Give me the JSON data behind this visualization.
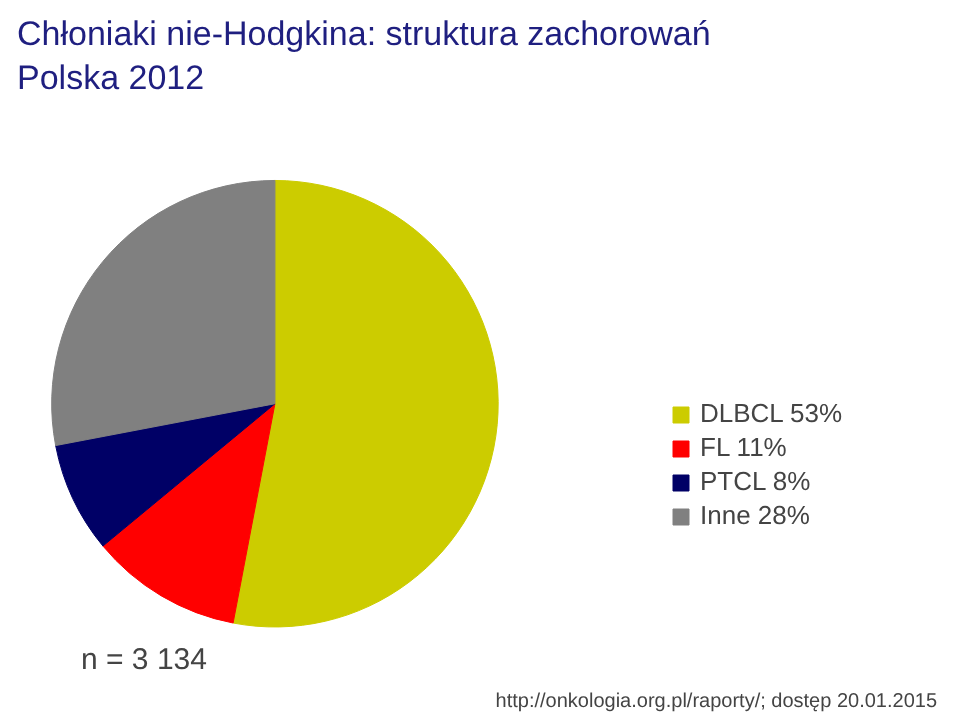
{
  "chart_data": {
    "type": "pie",
    "title": "Chłoniaki nie-Hodgkina: struktura zachorowań\nPolska 2012",
    "categories": [
      "DLBCL",
      "FL",
      "PTCL",
      "Inne"
    ],
    "values": [
      53,
      11,
      8,
      28
    ],
    "value_labels": [
      "53%",
      "11%",
      "8%",
      "28%"
    ],
    "colors": [
      "#cccc00",
      "#ff0000",
      "#000066",
      "#808080"
    ],
    "legend": "right",
    "annotations": [
      "n =   3 134",
      "http://onkologia.org.pl/raporty/; dostęp 20.01.2015"
    ]
  }
}
